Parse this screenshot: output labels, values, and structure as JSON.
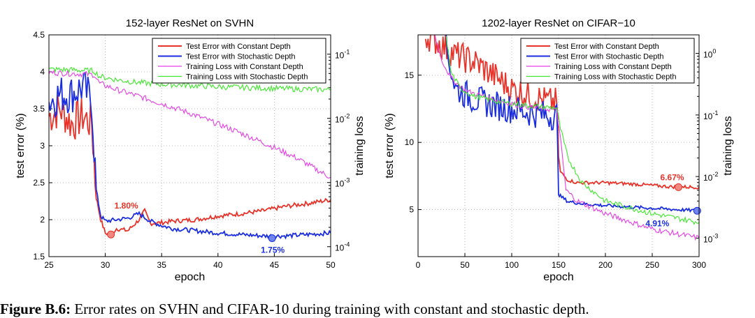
{
  "figure_caption": {
    "label": "Figure B.6:",
    "text": "Error rates on SVHN and CIFAR-10 during training with constant and stochastic depth."
  },
  "chart_data": [
    {
      "type": "line",
      "title": "152-layer ResNet on SVHN",
      "xlabel": "epoch",
      "ylabel": "test error (%)",
      "y2label": "training loss",
      "xlim": [
        25,
        50
      ],
      "ylim": [
        1.5,
        4.5
      ],
      "y2lim": [
        7e-05,
        0.2
      ],
      "y2scale": "log",
      "grid": true,
      "legend_position": "top-right",
      "x_ticks": [
        "25",
        "30",
        "35",
        "40",
        "45",
        "50"
      ],
      "y_ticks": [
        "1.5",
        "2",
        "2.5",
        "3",
        "3.5",
        "4",
        "4.5"
      ],
      "y2_ticks": [
        {
          "base": "10",
          "exp": "-4"
        },
        {
          "base": "10",
          "exp": "-3"
        },
        {
          "base": "10",
          "exp": "-2"
        },
        {
          "base": "10",
          "exp": "-1"
        }
      ],
      "series": [
        {
          "name": "Test Error with Constant Depth",
          "color": "#e8332a",
          "axis": "left",
          "x": [
            25,
            26,
            27,
            28,
            28.8,
            29.2,
            29.6,
            30,
            30.5,
            31,
            32,
            33,
            33.5,
            34,
            35,
            36,
            38,
            40,
            42,
            44,
            46,
            48,
            50
          ],
          "y": [
            3.4,
            3.5,
            3.3,
            3.4,
            3.3,
            2.3,
            2.0,
            1.82,
            1.8,
            1.88,
            1.85,
            2.0,
            2.12,
            1.95,
            1.96,
            1.98,
            2.0,
            2.05,
            2.08,
            2.12,
            2.18,
            2.22,
            2.27
          ]
        },
        {
          "name": "Test Error with Stochastic Depth",
          "color": "#1a2ee0",
          "axis": "left",
          "x": [
            25,
            26,
            27,
            28,
            28.8,
            29.2,
            29.6,
            30,
            31,
            32,
            33,
            34,
            35,
            36,
            38,
            40,
            42,
            44,
            46,
            48,
            50
          ],
          "y": [
            3.6,
            3.7,
            3.7,
            3.8,
            3.6,
            2.4,
            2.05,
            1.98,
            2.0,
            2.02,
            2.08,
            1.98,
            1.92,
            1.88,
            1.85,
            1.82,
            1.8,
            1.78,
            1.78,
            1.8,
            1.82
          ]
        },
        {
          "name": "Training Loss with Constant Depth",
          "color": "#e63ee6",
          "axis": "right",
          "x": [
            25,
            27,
            29,
            29.5,
            31,
            33,
            35,
            37,
            39,
            41,
            43,
            45,
            47,
            49,
            50
          ],
          "y": [
            0.052,
            0.05,
            0.048,
            0.035,
            0.028,
            0.022,
            0.017,
            0.013,
            0.0095,
            0.007,
            0.005,
            0.0035,
            0.0024,
            0.0015,
            0.0012
          ]
        },
        {
          "name": "Training Loss with Stochastic Depth",
          "color": "#3ee82a",
          "axis": "right",
          "x": [
            25,
            27,
            29,
            29.5,
            31,
            33,
            35,
            37,
            40,
            43,
            46,
            50
          ],
          "y": [
            0.058,
            0.057,
            0.055,
            0.045,
            0.04,
            0.036,
            0.034,
            0.033,
            0.031,
            0.03,
            0.029,
            0.028
          ]
        }
      ],
      "annotations": [
        {
          "text": "1.80%",
          "color": "#e8332a",
          "x": 30.5,
          "y": 1.8
        },
        {
          "text": "1.75%",
          "color": "#1a2ee0",
          "x": 44.8,
          "y": 1.75
        }
      ]
    },
    {
      "type": "line",
      "title": "1202-layer ResNet on CIFAR−10",
      "xlabel": "epoch",
      "ylabel": "test error (%)",
      "y2label": "training loss",
      "xlim": [
        0,
        300
      ],
      "ylim": [
        1.5,
        18
      ],
      "y2lim": [
        0.0005,
        2
      ],
      "y2scale": "log",
      "grid": true,
      "legend_position": "top-right",
      "x_ticks": [
        "0",
        "50",
        "100",
        "150",
        "200",
        "250",
        "300"
      ],
      "y_ticks": [
        "5",
        "10",
        "15"
      ],
      "y2_ticks": [
        {
          "base": "10",
          "exp": "-3"
        },
        {
          "base": "10",
          "exp": "-2"
        },
        {
          "base": "10",
          "exp": "-1"
        },
        {
          "base": "10",
          "exp": "0"
        }
      ],
      "series": [
        {
          "name": "Test Error with Constant Depth",
          "color": "#e8332a",
          "axis": "left",
          "x": [
            8,
            20,
            40,
            60,
            80,
            100,
            120,
            140,
            148,
            150,
            152,
            160,
            170,
            200,
            230,
            250,
            270,
            300
          ],
          "y": [
            18,
            17.5,
            16.5,
            16,
            15,
            14,
            13.5,
            13,
            13,
            9,
            7.8,
            7.2,
            7.0,
            7.0,
            6.9,
            6.8,
            6.7,
            6.67
          ]
        },
        {
          "name": "Test Error with Stochastic Depth",
          "color": "#1a2ee0",
          "axis": "left",
          "x": [
            30,
            40,
            60,
            80,
            100,
            120,
            140,
            148,
            150,
            152,
            160,
            180,
            200,
            250,
            300
          ],
          "y": [
            17,
            14,
            13.2,
            12.8,
            12.5,
            12.2,
            12.0,
            12.0,
            6.2,
            6.0,
            5.6,
            5.4,
            5.3,
            5.1,
            4.91
          ]
        },
        {
          "name": "Training Loss with Constant Depth",
          "color": "#e63ee6",
          "axis": "right",
          "x": [
            18,
            25,
            35,
            50,
            80,
            110,
            148,
            152,
            158,
            170,
            200,
            250,
            300
          ],
          "y": [
            2,
            0.8,
            0.4,
            0.25,
            0.18,
            0.14,
            0.12,
            0.04,
            0.006,
            0.004,
            0.0025,
            0.0014,
            0.001
          ]
        },
        {
          "name": "Training Loss with Stochastic Depth",
          "color": "#3ee82a",
          "axis": "right",
          "x": [
            30,
            35,
            45,
            60,
            90,
            120,
            148,
            152,
            160,
            175,
            200,
            250,
            300
          ],
          "y": [
            2,
            0.5,
            0.27,
            0.2,
            0.16,
            0.14,
            0.13,
            0.06,
            0.02,
            0.008,
            0.004,
            0.0025,
            0.0018
          ]
        }
      ],
      "annotations": [
        {
          "text": "6.67%",
          "color": "#e8332a",
          "x": 278,
          "y": 6.67
        },
        {
          "text": "4.91%",
          "color": "#1a2ee0",
          "x": 298,
          "y": 4.91
        }
      ]
    }
  ]
}
